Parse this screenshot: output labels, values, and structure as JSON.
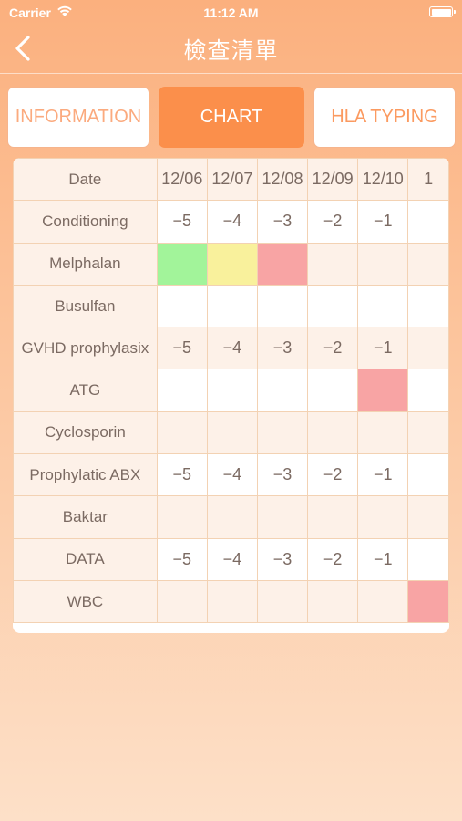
{
  "status": {
    "carrier": "Carrier",
    "time": "11:12 AM"
  },
  "nav": {
    "title": "檢查清單",
    "back_icon": "chevron-left-icon"
  },
  "tabs": [
    {
      "label": "INFORMATION",
      "selected": false
    },
    {
      "label": "CHART",
      "selected": true
    },
    {
      "label": "HLA TYPING",
      "selected": false
    }
  ],
  "table": {
    "header_label": "Date",
    "dates": [
      "12/06",
      "12/07",
      "12/08",
      "12/09",
      "12/10",
      "1"
    ],
    "rows": [
      {
        "label": "Conditioning",
        "cells": [
          "−5",
          "−4",
          "−3",
          "−2",
          "−1",
          ""
        ]
      },
      {
        "label": "Melphalan",
        "cells": [
          "",
          "",
          "",
          "",
          "",
          ""
        ],
        "colors": [
          "green",
          "yellow",
          "red",
          "",
          "",
          ""
        ]
      },
      {
        "label": "Busulfan",
        "cells": [
          "",
          "",
          "",
          "",
          "",
          ""
        ]
      },
      {
        "label": "GVHD prophylasix",
        "cells": [
          "−5",
          "−4",
          "−3",
          "−2",
          "−1",
          ""
        ]
      },
      {
        "label": "ATG",
        "cells": [
          "",
          "",
          "",
          "",
          "",
          ""
        ],
        "colors": [
          "",
          "",
          "",
          "",
          "red",
          ""
        ]
      },
      {
        "label": "Cyclosporin",
        "cells": [
          "",
          "",
          "",
          "",
          "",
          ""
        ]
      },
      {
        "label": "Prophylatic ABX",
        "cells": [
          "−5",
          "−4",
          "−3",
          "−2",
          "−1",
          ""
        ]
      },
      {
        "label": "Baktar",
        "cells": [
          "",
          "",
          "",
          "",
          "",
          ""
        ]
      },
      {
        "label": "DATA",
        "cells": [
          "−5",
          "−4",
          "−3",
          "−2",
          "−1",
          ""
        ]
      },
      {
        "label": "WBC",
        "cells": [
          "",
          "",
          "",
          "",
          "",
          ""
        ],
        "colors": [
          "",
          "",
          "",
          "",
          "",
          "red"
        ]
      }
    ]
  },
  "colors": {
    "accent": "#fb8f4b",
    "green": "#a2f49a",
    "yellow": "#f9f19c",
    "red": "#f8a4a4"
  }
}
